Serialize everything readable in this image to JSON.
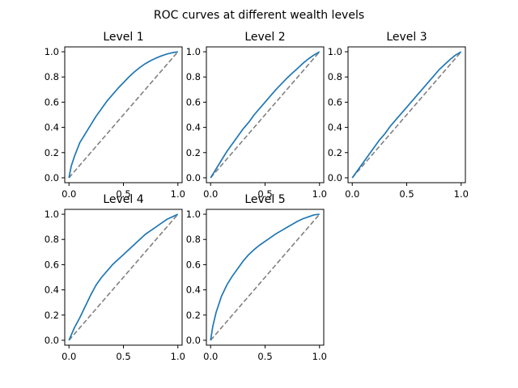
{
  "chart_data": {
    "type": "line",
    "suptitle": "ROC curves at different wealth levels",
    "colors": {
      "roc": "#1f77b4",
      "diagonal": "#808080"
    },
    "panels": [
      {
        "title": "Level 1",
        "xlim": [
          0,
          1
        ],
        "ylim": [
          0,
          1
        ],
        "xticks": [
          "0.0",
          "0.5",
          "1.0"
        ],
        "yticks": [
          "0.0",
          "0.2",
          "0.4",
          "0.6",
          "0.8",
          "1.0"
        ],
        "x": [
          0,
          0.02,
          0.05,
          0.1,
          0.15,
          0.2,
          0.25,
          0.3,
          0.35,
          0.4,
          0.45,
          0.5,
          0.55,
          0.6,
          0.65,
          0.7,
          0.75,
          0.8,
          0.85,
          0.9,
          0.95,
          1.0
        ],
        "y": [
          0,
          0.09,
          0.17,
          0.28,
          0.35,
          0.42,
          0.49,
          0.55,
          0.61,
          0.66,
          0.71,
          0.755,
          0.8,
          0.84,
          0.875,
          0.905,
          0.93,
          0.95,
          0.968,
          0.982,
          0.993,
          1.0
        ]
      },
      {
        "title": "Level 2",
        "xlim": [
          0,
          1
        ],
        "ylim": [
          0,
          1
        ],
        "xticks": [
          "0.0",
          "0.5",
          "1.0"
        ],
        "yticks": [
          "0.0",
          "0.2",
          "0.4",
          "0.6",
          "0.8",
          "1.0"
        ],
        "x": [
          0,
          0.05,
          0.1,
          0.15,
          0.2,
          0.25,
          0.3,
          0.35,
          0.4,
          0.45,
          0.5,
          0.55,
          0.6,
          0.65,
          0.7,
          0.75,
          0.8,
          0.85,
          0.9,
          0.95,
          1.0
        ],
        "y": [
          0,
          0.07,
          0.14,
          0.21,
          0.27,
          0.33,
          0.39,
          0.44,
          0.5,
          0.55,
          0.6,
          0.65,
          0.7,
          0.745,
          0.79,
          0.83,
          0.87,
          0.91,
          0.945,
          0.975,
          1.0
        ]
      },
      {
        "title": "Level 3",
        "xlim": [
          0,
          1
        ],
        "ylim": [
          0,
          1
        ],
        "xticks": [
          "0.0",
          "0.5",
          "1.0"
        ],
        "yticks": [
          "0.0",
          "0.2",
          "0.4",
          "0.6",
          "0.8",
          "1.0"
        ],
        "x": [
          0,
          0.05,
          0.1,
          0.15,
          0.2,
          0.25,
          0.3,
          0.35,
          0.4,
          0.45,
          0.5,
          0.55,
          0.6,
          0.65,
          0.7,
          0.75,
          0.8,
          0.85,
          0.9,
          0.95,
          1.0
        ],
        "y": [
          0,
          0.06,
          0.12,
          0.18,
          0.24,
          0.3,
          0.35,
          0.41,
          0.46,
          0.51,
          0.56,
          0.61,
          0.66,
          0.71,
          0.76,
          0.81,
          0.86,
          0.9,
          0.94,
          0.975,
          1.0
        ]
      },
      {
        "title": "Level 4",
        "xlim": [
          0,
          1
        ],
        "ylim": [
          0,
          1
        ],
        "xticks": [
          "0.0",
          "0.5",
          "1.0"
        ],
        "yticks": [
          "0.0",
          "0.2",
          "0.4",
          "0.6",
          "0.8",
          "1.0"
        ],
        "x": [
          0,
          0.05,
          0.1,
          0.15,
          0.2,
          0.25,
          0.3,
          0.35,
          0.4,
          0.45,
          0.5,
          0.55,
          0.6,
          0.65,
          0.7,
          0.75,
          0.8,
          0.85,
          0.9,
          0.95,
          1.0
        ],
        "y": [
          0,
          0.1,
          0.18,
          0.27,
          0.36,
          0.44,
          0.5,
          0.55,
          0.6,
          0.64,
          0.68,
          0.72,
          0.76,
          0.8,
          0.84,
          0.87,
          0.9,
          0.93,
          0.96,
          0.98,
          1.0
        ]
      },
      {
        "title": "Level 5",
        "xlim": [
          0,
          1
        ],
        "ylim": [
          0,
          1
        ],
        "xticks": [
          "0.0",
          "0.5",
          "1.0"
        ],
        "yticks": [
          "0.0",
          "0.2",
          "0.4",
          "0.6",
          "0.8",
          "1.0"
        ],
        "x": [
          0,
          0.02,
          0.05,
          0.1,
          0.15,
          0.2,
          0.25,
          0.3,
          0.35,
          0.4,
          0.45,
          0.5,
          0.55,
          0.6,
          0.65,
          0.7,
          0.75,
          0.8,
          0.85,
          0.9,
          0.95,
          1.0
        ],
        "y": [
          0,
          0.11,
          0.22,
          0.35,
          0.44,
          0.51,
          0.57,
          0.63,
          0.68,
          0.72,
          0.755,
          0.785,
          0.815,
          0.845,
          0.87,
          0.895,
          0.92,
          0.945,
          0.965,
          0.98,
          0.995,
          1.0
        ]
      }
    ]
  }
}
